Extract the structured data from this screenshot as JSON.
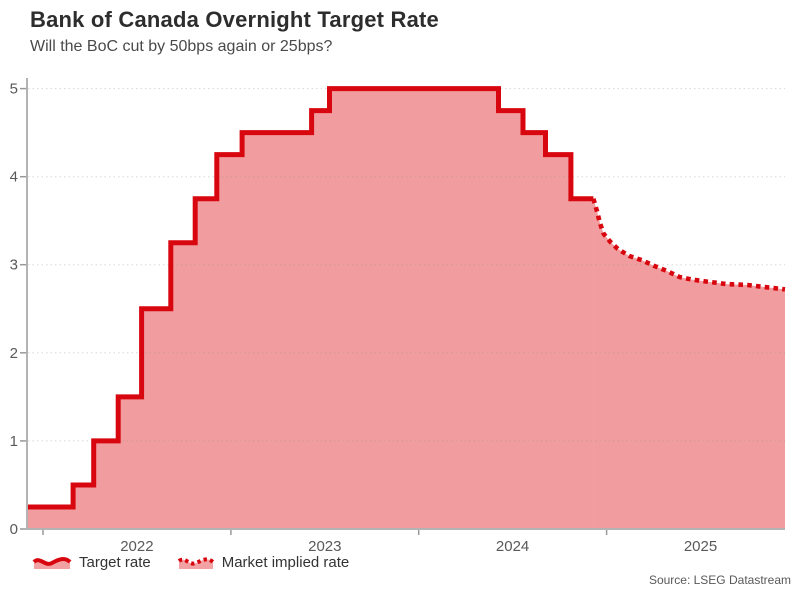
{
  "colors": {
    "line": "#d8070f",
    "fill": "rgba(219,10,16,0.40)",
    "legend_fill": "#f3a2a3",
    "grid": "rgba(140,140,140,0.35)",
    "axis": "#b3b3b3",
    "tick": "#999999",
    "tick_text": "#595959"
  },
  "chart_data": {
    "type": "area",
    "title": "Bank of Canada Overnight Target Rate",
    "subtitle": "Will the BoC cut by 50bps again or 25bps?",
    "source": "Source: LSEG Datastream",
    "xlabel": "",
    "ylabel": "",
    "grid": "horizontal-dotted",
    "legend_position": "bottom-left",
    "x_domain": [
      2021.92,
      2025.95
    ],
    "ylim": [
      0,
      5.12
    ],
    "y_ticks": [
      0,
      1,
      2,
      3,
      4,
      5
    ],
    "y_tick_labels": [
      "0",
      "1",
      "2",
      "3",
      "4",
      "5"
    ],
    "x_tick_years": [
      2022,
      2023,
      2024,
      2025
    ],
    "x_tick_labels": [
      "2022",
      "2023",
      "2024",
      "2025"
    ],
    "x_tick_label_centers": [
      2022.5,
      2023.5,
      2024.5,
      2025.5
    ],
    "series": [
      {
        "name": "Target rate",
        "type": "step-after",
        "line_style": "solid",
        "points": [
          [
            2021.92,
            0.25
          ],
          [
            2022.16,
            0.5
          ],
          [
            2022.27,
            1.0
          ],
          [
            2022.4,
            1.5
          ],
          [
            2022.525,
            2.5
          ],
          [
            2022.68,
            3.25
          ],
          [
            2022.81,
            3.75
          ],
          [
            2022.925,
            4.25
          ],
          [
            2023.06,
            4.5
          ],
          [
            2023.43,
            4.75
          ],
          [
            2023.525,
            5.0
          ],
          [
            2024.425,
            4.75
          ],
          [
            2024.555,
            4.5
          ],
          [
            2024.675,
            4.25
          ],
          [
            2024.81,
            3.75
          ],
          [
            2024.93,
            3.75
          ]
        ]
      },
      {
        "name": "Market implied rate",
        "type": "line",
        "line_style": "dotted",
        "points": [
          [
            2024.93,
            3.75
          ],
          [
            2024.95,
            3.6
          ],
          [
            2024.965,
            3.47
          ],
          [
            2024.985,
            3.35
          ],
          [
            2025.02,
            3.26
          ],
          [
            2025.06,
            3.18
          ],
          [
            2025.12,
            3.1
          ],
          [
            2025.19,
            3.05
          ],
          [
            2025.25,
            2.99
          ],
          [
            2025.32,
            2.93
          ],
          [
            2025.39,
            2.86
          ],
          [
            2025.46,
            2.83
          ],
          [
            2025.53,
            2.81
          ],
          [
            2025.64,
            2.78
          ],
          [
            2025.75,
            2.77
          ],
          [
            2025.83,
            2.75
          ],
          [
            2025.91,
            2.73
          ],
          [
            2025.95,
            2.72
          ]
        ]
      }
    ]
  }
}
